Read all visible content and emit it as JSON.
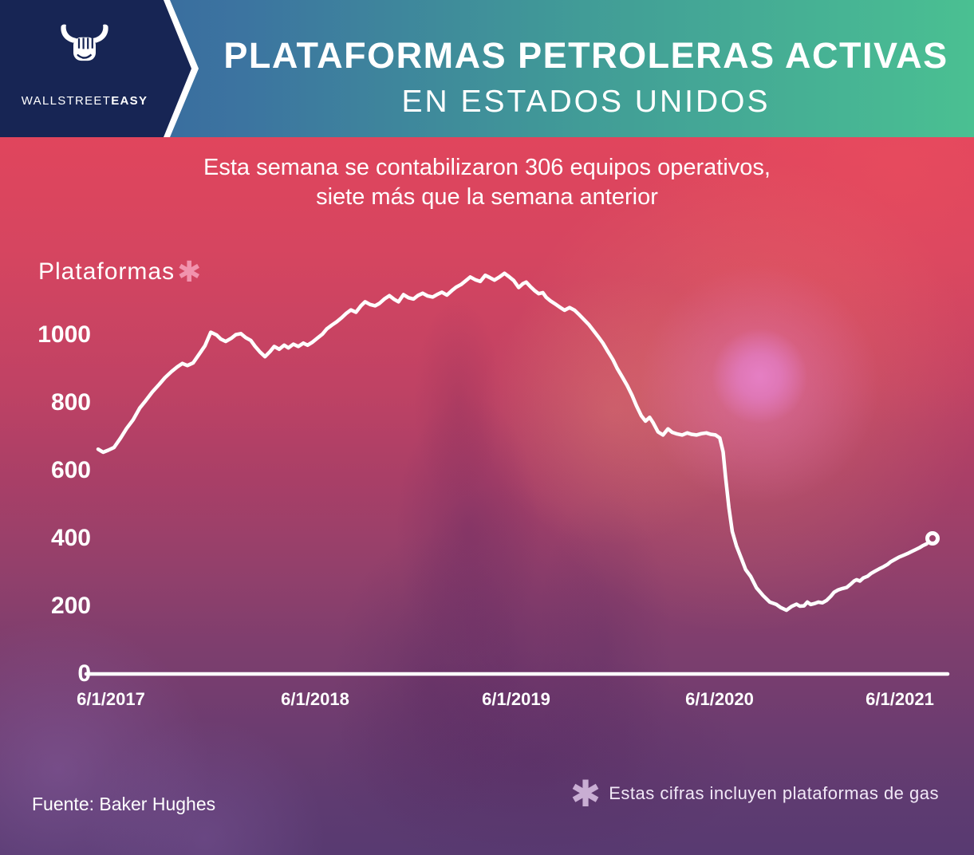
{
  "header": {
    "brand": {
      "icon": "bull-fist-icon",
      "name_regular": "WALLSTREET",
      "name_bold": "EASY"
    },
    "title_line1": "PLATAFORMAS PETROLERAS ACTIVAS",
    "title_line2": "EN ESTADOS UNIDOS"
  },
  "subtitle": {
    "line1": "Esta semana se contabilizaron 306 equipos operativos,",
    "line2": "siete más que la semana anterior"
  },
  "chart_data": {
    "type": "line",
    "title": "Plataformas petroleras activas en Estados Unidos",
    "ylabel": "Plataformas",
    "ylabel_asterisk": "✱",
    "y_ticks": [
      1000,
      800,
      600,
      400,
      200,
      0
    ],
    "x_tick_labels": [
      "6/1/2017",
      "6/1/2018",
      "6/1/2019",
      "6/1/2020",
      "6/1/2021"
    ],
    "ylim": [
      0,
      1200
    ],
    "grid": false,
    "legend": "none",
    "line_color": "#ffffff",
    "end_marker": "open-circle",
    "series": [
      {
        "name": "Plataformas activas (incluye gas)",
        "points": [
          [
            0.0,
            663
          ],
          [
            0.006,
            654
          ],
          [
            0.012,
            660
          ],
          [
            0.019,
            668
          ],
          [
            0.027,
            696
          ],
          [
            0.034,
            724
          ],
          [
            0.042,
            750
          ],
          [
            0.05,
            785
          ],
          [
            0.057,
            806
          ],
          [
            0.065,
            832
          ],
          [
            0.073,
            854
          ],
          [
            0.08,
            874
          ],
          [
            0.088,
            892
          ],
          [
            0.095,
            906
          ],
          [
            0.101,
            916
          ],
          [
            0.107,
            910
          ],
          [
            0.114,
            918
          ],
          [
            0.121,
            943
          ],
          [
            0.128,
            968
          ],
          [
            0.135,
            1008
          ],
          [
            0.142,
            1000
          ],
          [
            0.147,
            988
          ],
          [
            0.153,
            981
          ],
          [
            0.16,
            991
          ],
          [
            0.165,
            1001
          ],
          [
            0.171,
            1004
          ],
          [
            0.177,
            992
          ],
          [
            0.183,
            984
          ],
          [
            0.188,
            967
          ],
          [
            0.194,
            950
          ],
          [
            0.2,
            936
          ],
          [
            0.206,
            951
          ],
          [
            0.211,
            966
          ],
          [
            0.217,
            958
          ],
          [
            0.223,
            970
          ],
          [
            0.228,
            962
          ],
          [
            0.234,
            973
          ],
          [
            0.24,
            966
          ],
          [
            0.246,
            976
          ],
          [
            0.251,
            970
          ],
          [
            0.257,
            979
          ],
          [
            0.263,
            991
          ],
          [
            0.269,
            1003
          ],
          [
            0.274,
            1018
          ],
          [
            0.28,
            1029
          ],
          [
            0.286,
            1039
          ],
          [
            0.292,
            1051
          ],
          [
            0.297,
            1063
          ],
          [
            0.303,
            1074
          ],
          [
            0.309,
            1067
          ],
          [
            0.315,
            1086
          ],
          [
            0.32,
            1098
          ],
          [
            0.326,
            1090
          ],
          [
            0.332,
            1086
          ],
          [
            0.337,
            1093
          ],
          [
            0.343,
            1106
          ],
          [
            0.349,
            1116
          ],
          [
            0.355,
            1105
          ],
          [
            0.36,
            1098
          ],
          [
            0.366,
            1119
          ],
          [
            0.372,
            1110
          ],
          [
            0.378,
            1106
          ],
          [
            0.383,
            1116
          ],
          [
            0.389,
            1123
          ],
          [
            0.395,
            1115
          ],
          [
            0.401,
            1112
          ],
          [
            0.406,
            1119
          ],
          [
            0.412,
            1126
          ],
          [
            0.418,
            1118
          ],
          [
            0.424,
            1131
          ],
          [
            0.429,
            1141
          ],
          [
            0.435,
            1149
          ],
          [
            0.441,
            1161
          ],
          [
            0.446,
            1171
          ],
          [
            0.452,
            1163
          ],
          [
            0.458,
            1158
          ],
          [
            0.464,
            1176
          ],
          [
            0.469,
            1170
          ],
          [
            0.475,
            1162
          ],
          [
            0.481,
            1171
          ],
          [
            0.487,
            1182
          ],
          [
            0.492,
            1173
          ],
          [
            0.498,
            1161
          ],
          [
            0.504,
            1140
          ],
          [
            0.509,
            1151
          ],
          [
            0.513,
            1156
          ],
          [
            0.518,
            1143
          ],
          [
            0.523,
            1131
          ],
          [
            0.528,
            1122
          ],
          [
            0.533,
            1125
          ],
          [
            0.537,
            1111
          ],
          [
            0.542,
            1101
          ],
          [
            0.548,
            1091
          ],
          [
            0.554,
            1081
          ],
          [
            0.559,
            1073
          ],
          [
            0.565,
            1081
          ],
          [
            0.571,
            1073
          ],
          [
            0.577,
            1059
          ],
          [
            0.582,
            1046
          ],
          [
            0.588,
            1031
          ],
          [
            0.594,
            1012
          ],
          [
            0.599,
            996
          ],
          [
            0.605,
            976
          ],
          [
            0.611,
            951
          ],
          [
            0.617,
            927
          ],
          [
            0.622,
            902
          ],
          [
            0.628,
            877
          ],
          [
            0.634,
            851
          ],
          [
            0.64,
            822
          ],
          [
            0.645,
            792
          ],
          [
            0.651,
            762
          ],
          [
            0.656,
            746
          ],
          [
            0.661,
            757
          ],
          [
            0.665,
            742
          ],
          [
            0.671,
            714
          ],
          [
            0.677,
            705
          ],
          [
            0.683,
            723
          ],
          [
            0.688,
            713
          ],
          [
            0.694,
            708
          ],
          [
            0.7,
            705
          ],
          [
            0.706,
            711
          ],
          [
            0.711,
            707
          ],
          [
            0.717,
            705
          ],
          [
            0.723,
            709
          ],
          [
            0.729,
            711
          ],
          [
            0.734,
            707
          ],
          [
            0.74,
            705
          ],
          [
            0.745,
            696
          ],
          [
            0.749,
            655
          ],
          [
            0.752,
            580
          ],
          [
            0.756,
            490
          ],
          [
            0.76,
            420
          ],
          [
            0.765,
            378
          ],
          [
            0.771,
            340
          ],
          [
            0.776,
            308
          ],
          [
            0.782,
            288
          ],
          [
            0.789,
            254
          ],
          [
            0.797,
            231
          ],
          [
            0.805,
            212
          ],
          [
            0.813,
            205
          ],
          [
            0.818,
            196
          ],
          [
            0.825,
            188
          ],
          [
            0.831,
            199
          ],
          [
            0.837,
            206
          ],
          [
            0.841,
            200
          ],
          [
            0.846,
            201
          ],
          [
            0.85,
            212
          ],
          [
            0.854,
            205
          ],
          [
            0.859,
            208
          ],
          [
            0.863,
            212
          ],
          [
            0.868,
            210
          ],
          [
            0.873,
            217
          ],
          [
            0.878,
            229
          ],
          [
            0.882,
            241
          ],
          [
            0.887,
            248
          ],
          [
            0.892,
            252
          ],
          [
            0.897,
            255
          ],
          [
            0.902,
            265
          ],
          [
            0.906,
            274
          ],
          [
            0.909,
            278
          ],
          [
            0.913,
            274
          ],
          [
            0.917,
            283
          ],
          [
            0.922,
            288
          ],
          [
            0.926,
            296
          ],
          [
            0.931,
            303
          ],
          [
            0.936,
            310
          ],
          [
            0.941,
            316
          ],
          [
            0.946,
            323
          ],
          [
            0.95,
            331
          ],
          [
            0.955,
            338
          ],
          [
            0.96,
            345
          ],
          [
            0.965,
            350
          ],
          [
            0.97,
            355
          ],
          [
            0.974,
            360
          ],
          [
            0.979,
            366
          ],
          [
            0.984,
            372
          ],
          [
            0.988,
            378
          ],
          [
            0.993,
            384
          ],
          [
            1.0,
            400
          ]
        ]
      }
    ]
  },
  "footer": {
    "source": "Fuente: Baker Hughes",
    "note_asterisk": "✱",
    "note": "Estas cifras incluyen plataformas de gas"
  },
  "colors": {
    "navy": "#172554",
    "header_gradient_left": "#35619b",
    "header_gradient_right": "#4ac092",
    "top_red": "#e5445a",
    "bottom_purple": "#583a71",
    "pink_asterisk": "#f193ad",
    "lavender_asterisk": "#c9aed3",
    "line": "#ffffff"
  }
}
